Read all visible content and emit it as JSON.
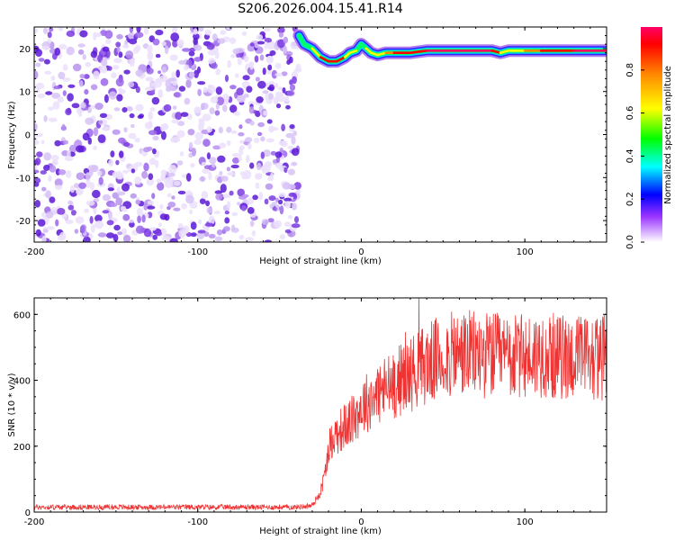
{
  "figure_title": "S206.2026.004.15.41.R14",
  "chart_data": [
    {
      "type": "heatmap",
      "title": "S206.2026.004.15.41.R14",
      "xlabel": "Height of straight line (km)",
      "ylabel": "Frequency (Hz)",
      "xlim": [
        -200,
        150
      ],
      "ylim": [
        -25,
        25
      ],
      "xticks": [
        -200,
        -100,
        0,
        100
      ],
      "xtick_labels": [
        "-200",
        "-100",
        "0",
        "100"
      ],
      "yticks": [
        -20,
        -10,
        0,
        10,
        20
      ],
      "ytick_labels": [
        "-20",
        "-10",
        "0",
        "10",
        "20"
      ],
      "noise_region_x": [
        -200,
        -38
      ],
      "ridge": {
        "x": [
          -38,
          -35,
          -30,
          -25,
          -20,
          -15,
          -10,
          -7,
          -3,
          0,
          3,
          6,
          10,
          15,
          20,
          30,
          40,
          50,
          60,
          70,
          80,
          85,
          90,
          100,
          110,
          120,
          130,
          140,
          150
        ],
        "y": [
          23,
          21,
          20,
          18,
          17,
          17,
          18,
          19,
          19.5,
          21,
          20,
          19,
          18.5,
          19,
          19,
          19,
          19.5,
          19.5,
          19.5,
          19.5,
          19.5,
          19,
          19.5,
          19.5,
          19.5,
          19.5,
          19.5,
          19.5,
          19.5
        ],
        "amplitude": [
          0.3,
          0.35,
          0.4,
          0.6,
          0.85,
          0.9,
          0.55,
          0.5,
          0.4,
          0.35,
          0.4,
          0.5,
          0.45,
          0.6,
          0.65,
          0.9,
          0.85,
          0.95,
          0.95,
          0.95,
          0.9,
          0.45,
          0.6,
          0.6,
          0.7,
          0.8,
          0.9,
          0.95,
          0.9
        ]
      },
      "colorbar": {
        "label": "Normalized spectral amplitude",
        "range": [
          0.0,
          1.0
        ],
        "ticks": [
          0.0,
          0.2,
          0.4,
          0.6,
          0.8
        ],
        "tick_labels": [
          "0.0",
          "0.2",
          "0.4",
          "0.6",
          "0.8"
        ],
        "colors": [
          "#ffffff",
          "#9933ff",
          "#0000ff",
          "#00ffff",
          "#00ff00",
          "#ffff00",
          "#ff8800",
          "#ff0000",
          "#ff0066"
        ]
      }
    },
    {
      "type": "line",
      "xlabel": "Height of straight line (km)",
      "ylabel": "SNR (10 * v/v)",
      "xlim": [
        -200,
        150
      ],
      "ylim": [
        0,
        650
      ],
      "xticks": [
        -200,
        -100,
        0,
        100
      ],
      "xtick_labels": [
        "-200",
        "-100",
        "0",
        "100"
      ],
      "yticks": [
        0,
        200,
        400,
        600
      ],
      "ytick_labels": [
        "0",
        "200",
        "400",
        "600"
      ],
      "series": [
        {
          "name": "SNR",
          "color": "#ee3333",
          "x": [
            -200,
            -160,
            -120,
            -80,
            -40,
            -30,
            -25,
            -22,
            -20,
            -15,
            -10,
            -5,
            0,
            5,
            10,
            20,
            30,
            40,
            50,
            60,
            70,
            80,
            90,
            100,
            110,
            120,
            130,
            140,
            150
          ],
          "y": [
            15,
            15,
            15,
            15,
            15,
            20,
            60,
            120,
            200,
            240,
            260,
            280,
            320,
            340,
            360,
            390,
            420,
            450,
            470,
            480,
            480,
            475,
            470,
            470,
            480,
            470,
            470,
            470,
            470
          ]
        }
      ]
    }
  ]
}
